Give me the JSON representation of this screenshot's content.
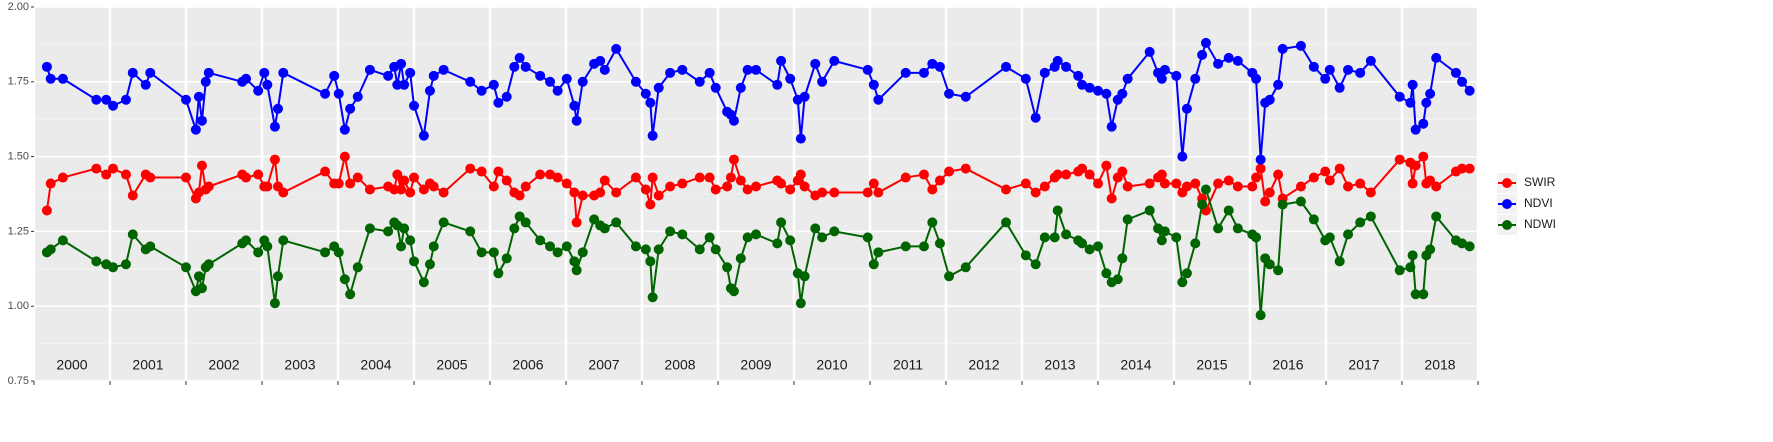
{
  "chart_data": {
    "type": "line",
    "year_labels": [
      "2000",
      "2001",
      "2002",
      "2003",
      "2004",
      "2005",
      "2006",
      "2007",
      "2008",
      "2009",
      "2010",
      "2011",
      "2012",
      "2013",
      "2014",
      "2015",
      "2016",
      "2017",
      "2018"
    ],
    "x": [
      2000.17,
      2000.22,
      2000.38,
      2000.82,
      2000.95,
      2001.04,
      2001.21,
      2001.3,
      2001.47,
      2001.53,
      2002.0,
      2002.13,
      2002.17,
      2002.21,
      2002.26,
      2002.3,
      2002.74,
      2002.79,
      2002.95,
      2003.03,
      2003.07,
      2003.17,
      2003.21,
      2003.28,
      2003.83,
      2003.95,
      2004.01,
      2004.09,
      2004.16,
      2004.26,
      2004.42,
      2004.66,
      2004.74,
      2004.78,
      2004.83,
      2004.87,
      2004.95,
      2005.0,
      2005.13,
      2005.21,
      2005.26,
      2005.39,
      2005.74,
      2005.89,
      2006.05,
      2006.11,
      2006.22,
      2006.32,
      2006.39,
      2006.47,
      2006.66,
      2006.79,
      2006.89,
      2007.01,
      2007.11,
      2007.14,
      2007.22,
      2007.37,
      2007.45,
      2007.51,
      2007.66,
      2007.92,
      2008.05,
      2008.11,
      2008.14,
      2008.22,
      2008.37,
      2008.53,
      2008.76,
      2008.89,
      2008.97,
      2009.12,
      2009.17,
      2009.21,
      2009.3,
      2009.39,
      2009.5,
      2009.78,
      2009.83,
      2009.95,
      2010.05,
      2010.09,
      2010.14,
      2010.28,
      2010.37,
      2010.53,
      2010.97,
      2011.05,
      2011.11,
      2011.47,
      2011.71,
      2011.82,
      2011.92,
      2012.04,
      2012.26,
      2012.79,
      2013.05,
      2013.18,
      2013.3,
      2013.43,
      2013.47,
      2013.58,
      2013.74,
      2013.79,
      2013.89,
      2014.0,
      2014.11,
      2014.18,
      2014.26,
      2014.32,
      2014.39,
      2014.68,
      2014.79,
      2014.84,
      2014.88,
      2015.03,
      2015.11,
      2015.17,
      2015.28,
      2015.37,
      2015.42,
      2015.58,
      2015.72,
      2015.84,
      2016.03,
      2016.08,
      2016.14,
      2016.2,
      2016.26,
      2016.37,
      2016.43,
      2016.67,
      2016.84,
      2016.99,
      2017.05,
      2017.18,
      2017.29,
      2017.45,
      2017.59,
      2017.97,
      2018.11,
      2018.14,
      2018.18,
      2018.28,
      2018.32,
      2018.37,
      2018.45,
      2018.71,
      2018.79,
      2018.89
    ],
    "series": [
      {
        "name": "SWIR",
        "color": "#ff0000",
        "values": [
          1.32,
          1.41,
          1.43,
          1.46,
          1.44,
          1.46,
          1.44,
          1.37,
          1.44,
          1.43,
          1.43,
          1.36,
          1.38,
          1.47,
          1.39,
          1.4,
          1.44,
          1.43,
          1.44,
          1.4,
          1.4,
          1.49,
          1.4,
          1.38,
          1.45,
          1.41,
          1.41,
          1.5,
          1.41,
          1.43,
          1.39,
          1.4,
          1.39,
          1.44,
          1.39,
          1.42,
          1.38,
          1.43,
          1.39,
          1.41,
          1.4,
          1.38,
          1.46,
          1.45,
          1.4,
          1.45,
          1.42,
          1.38,
          1.37,
          1.4,
          1.44,
          1.44,
          1.43,
          1.41,
          1.38,
          1.28,
          1.37,
          1.37,
          1.38,
          1.42,
          1.38,
          1.43,
          1.39,
          1.34,
          1.43,
          1.37,
          1.4,
          1.41,
          1.43,
          1.43,
          1.39,
          1.4,
          1.43,
          1.49,
          1.42,
          1.39,
          1.4,
          1.42,
          1.41,
          1.39,
          1.42,
          1.44,
          1.4,
          1.37,
          1.38,
          1.38,
          1.38,
          1.41,
          1.38,
          1.43,
          1.44,
          1.39,
          1.42,
          1.45,
          1.46,
          1.39,
          1.41,
          1.38,
          1.4,
          1.43,
          1.44,
          1.44,
          1.45,
          1.46,
          1.44,
          1.41,
          1.47,
          1.36,
          1.43,
          1.45,
          1.4,
          1.41,
          1.43,
          1.44,
          1.41,
          1.41,
          1.38,
          1.4,
          1.41,
          1.36,
          1.32,
          1.41,
          1.42,
          1.4,
          1.4,
          1.43,
          1.46,
          1.35,
          1.38,
          1.44,
          1.36,
          1.4,
          1.43,
          1.45,
          1.42,
          1.46,
          1.4,
          1.41,
          1.38,
          1.49,
          1.48,
          1.41,
          1.47,
          1.5,
          1.41,
          1.42,
          1.4,
          1.45,
          1.46,
          1.46
        ]
      },
      {
        "name": "NDVI",
        "color": "#0000ff",
        "values": [
          1.8,
          1.76,
          1.76,
          1.69,
          1.69,
          1.67,
          1.69,
          1.78,
          1.74,
          1.78,
          1.69,
          1.59,
          1.7,
          1.62,
          1.75,
          1.78,
          1.75,
          1.76,
          1.72,
          1.78,
          1.74,
          1.6,
          1.66,
          1.78,
          1.71,
          1.77,
          1.71,
          1.59,
          1.66,
          1.7,
          1.79,
          1.77,
          1.8,
          1.74,
          1.81,
          1.74,
          1.78,
          1.67,
          1.57,
          1.72,
          1.77,
          1.79,
          1.75,
          1.72,
          1.74,
          1.68,
          1.7,
          1.8,
          1.83,
          1.8,
          1.77,
          1.75,
          1.72,
          1.76,
          1.67,
          1.62,
          1.75,
          1.81,
          1.82,
          1.79,
          1.86,
          1.75,
          1.71,
          1.68,
          1.57,
          1.73,
          1.78,
          1.79,
          1.75,
          1.78,
          1.73,
          1.65,
          1.64,
          1.62,
          1.73,
          1.79,
          1.79,
          1.74,
          1.82,
          1.76,
          1.69,
          1.56,
          1.7,
          1.81,
          1.75,
          1.82,
          1.79,
          1.74,
          1.69,
          1.78,
          1.78,
          1.81,
          1.8,
          1.71,
          1.7,
          1.8,
          1.76,
          1.63,
          1.78,
          1.8,
          1.82,
          1.8,
          1.77,
          1.74,
          1.73,
          1.72,
          1.71,
          1.6,
          1.69,
          1.71,
          1.76,
          1.85,
          1.78,
          1.76,
          1.79,
          1.77,
          1.5,
          1.66,
          1.76,
          1.84,
          1.88,
          1.81,
          1.83,
          1.82,
          1.78,
          1.76,
          1.49,
          1.68,
          1.69,
          1.74,
          1.86,
          1.87,
          1.8,
          1.76,
          1.79,
          1.73,
          1.79,
          1.78,
          1.82,
          1.7,
          1.68,
          1.74,
          1.59,
          1.61,
          1.68,
          1.71,
          1.83,
          1.78,
          1.75,
          1.72
        ]
      },
      {
        "name": "NDWI",
        "color": "#006400",
        "values": [
          1.18,
          1.19,
          1.22,
          1.15,
          1.14,
          1.13,
          1.14,
          1.24,
          1.19,
          1.2,
          1.13,
          1.05,
          1.1,
          1.06,
          1.13,
          1.14,
          1.21,
          1.22,
          1.18,
          1.22,
          1.2,
          1.01,
          1.1,
          1.22,
          1.18,
          1.2,
          1.18,
          1.09,
          1.04,
          1.13,
          1.26,
          1.25,
          1.28,
          1.27,
          1.2,
          1.26,
          1.22,
          1.15,
          1.08,
          1.14,
          1.2,
          1.28,
          1.25,
          1.18,
          1.18,
          1.11,
          1.16,
          1.26,
          1.3,
          1.28,
          1.22,
          1.2,
          1.18,
          1.2,
          1.15,
          1.12,
          1.18,
          1.29,
          1.27,
          1.26,
          1.28,
          1.2,
          1.19,
          1.15,
          1.03,
          1.19,
          1.25,
          1.24,
          1.19,
          1.23,
          1.19,
          1.13,
          1.06,
          1.05,
          1.16,
          1.23,
          1.24,
          1.21,
          1.28,
          1.22,
          1.11,
          1.01,
          1.1,
          1.26,
          1.23,
          1.25,
          1.23,
          1.14,
          1.18,
          1.2,
          1.2,
          1.28,
          1.21,
          1.1,
          1.13,
          1.28,
          1.17,
          1.14,
          1.23,
          1.23,
          1.32,
          1.24,
          1.22,
          1.21,
          1.19,
          1.2,
          1.11,
          1.08,
          1.09,
          1.16,
          1.29,
          1.32,
          1.26,
          1.22,
          1.25,
          1.23,
          1.08,
          1.11,
          1.21,
          1.34,
          1.39,
          1.26,
          1.32,
          1.26,
          1.24,
          1.23,
          0.97,
          1.16,
          1.14,
          1.12,
          1.34,
          1.35,
          1.29,
          1.22,
          1.23,
          1.15,
          1.24,
          1.28,
          1.3,
          1.12,
          1.13,
          1.17,
          1.04,
          1.04,
          1.17,
          1.19,
          1.3,
          1.22,
          1.21,
          1.2
        ]
      }
    ],
    "xlim": [
      2000,
      2019
    ],
    "xticks": [
      2000,
      2001,
      2002,
      2003,
      2004,
      2005,
      2006,
      2007,
      2008,
      2009,
      2010,
      2011,
      2012,
      2013,
      2014,
      2015,
      2016,
      2017,
      2018,
      2019
    ],
    "ylim": [
      0.75,
      2.0
    ],
    "yticks": [
      {
        "value": 0.75,
        "label": "0.75"
      },
      {
        "value": 1.0,
        "label": "1.00"
      },
      {
        "value": 1.25,
        "label": "1.25"
      },
      {
        "value": 1.5,
        "label": "1.50"
      },
      {
        "value": 1.75,
        "label": "1.75"
      },
      {
        "value": 2.0,
        "label": "2.00"
      }
    ],
    "grid": true,
    "legend": "right",
    "legend_order": [
      0,
      1,
      2
    ]
  }
}
